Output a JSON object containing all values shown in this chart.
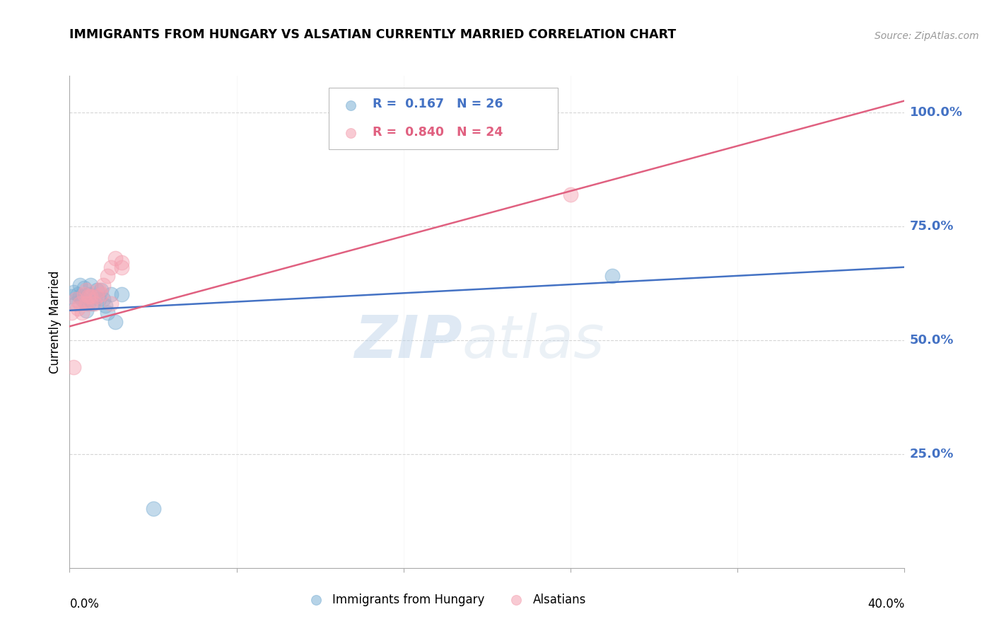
{
  "title": "IMMIGRANTS FROM HUNGARY VS ALSATIAN CURRENTLY MARRIED CORRELATION CHART",
  "source": "Source: ZipAtlas.com",
  "ylabel": "Currently Married",
  "ytick_labels": [
    "100.0%",
    "75.0%",
    "50.0%",
    "25.0%"
  ],
  "ytick_vals": [
    1.0,
    0.75,
    0.5,
    0.25
  ],
  "xlim": [
    0.0,
    0.4
  ],
  "ylim": [
    0.0,
    1.08
  ],
  "watermark_zip": "ZIP",
  "watermark_atlas": "atlas",
  "legend_label1": "Immigrants from Hungary",
  "legend_label2": "Alsatians",
  "legend_R1": "0.167",
  "legend_N1": "26",
  "legend_R2": "0.840",
  "legend_N2": "24",
  "color_blue": "#7BAFD4",
  "color_pink": "#F4A0B0",
  "color_blue_line": "#4472C4",
  "color_pink_line": "#E06080",
  "color_ytick": "#4472C4",
  "background": "#FFFFFF",
  "hungary_x": [
    0.001,
    0.002,
    0.003,
    0.004,
    0.005,
    0.005,
    0.006,
    0.007,
    0.008,
    0.008,
    0.009,
    0.009,
    0.01,
    0.011,
    0.012,
    0.013,
    0.014,
    0.015,
    0.016,
    0.017,
    0.018,
    0.02,
    0.022,
    0.025,
    0.26,
    0.04
  ],
  "hungary_y": [
    0.595,
    0.605,
    0.58,
    0.6,
    0.62,
    0.595,
    0.59,
    0.615,
    0.565,
    0.58,
    0.6,
    0.58,
    0.62,
    0.58,
    0.595,
    0.61,
    0.59,
    0.61,
    0.59,
    0.575,
    0.56,
    0.6,
    0.54,
    0.6,
    0.64,
    0.13
  ],
  "alsatian_x": [
    0.001,
    0.002,
    0.003,
    0.004,
    0.005,
    0.006,
    0.007,
    0.008,
    0.008,
    0.009,
    0.01,
    0.01,
    0.012,
    0.013,
    0.014,
    0.015,
    0.016,
    0.018,
    0.02,
    0.022,
    0.025,
    0.025,
    0.24,
    0.02
  ],
  "alsatian_y": [
    0.56,
    0.44,
    0.59,
    0.57,
    0.58,
    0.56,
    0.6,
    0.61,
    0.58,
    0.595,
    0.58,
    0.595,
    0.58,
    0.595,
    0.61,
    0.6,
    0.62,
    0.64,
    0.66,
    0.68,
    0.67,
    0.66,
    0.82,
    0.58
  ],
  "blue_line_y0": 0.565,
  "blue_line_y1": 0.66,
  "pink_line_y0": 0.53,
  "pink_line_y1": 1.025,
  "grid_color": "#CCCCCC",
  "grid_linestyle": "--",
  "grid_alpha": 0.8
}
